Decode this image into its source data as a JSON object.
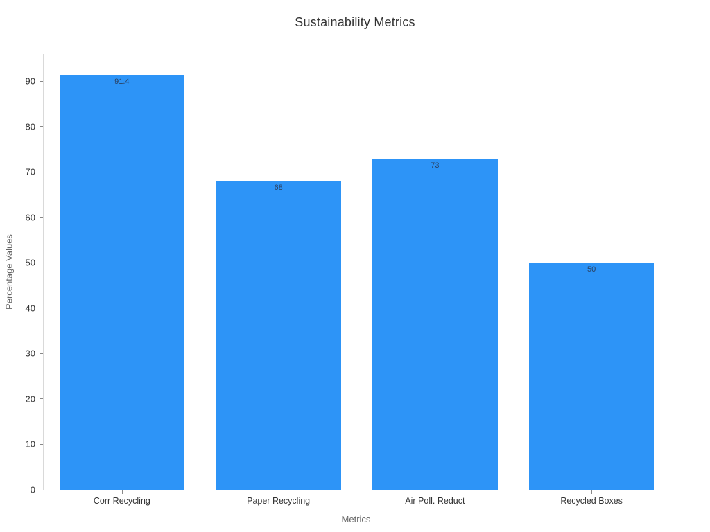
{
  "chart_data": {
    "type": "bar",
    "title": "Sustainability Metrics",
    "xlabel": "Metrics",
    "ylabel": "Percentage Values",
    "categories": [
      "Corr Recycling",
      "Paper Recycling",
      "Air Poll. Reduct",
      "Recycled Boxes"
    ],
    "values": [
      91.4,
      68,
      73,
      50
    ],
    "value_labels": [
      "91.4",
      "68",
      "73",
      "50"
    ],
    "ylim": [
      0,
      96
    ],
    "yticks": [
      0,
      10,
      20,
      30,
      40,
      50,
      60,
      70,
      80,
      90
    ],
    "grid": false,
    "legend": "none",
    "colors": {
      "bar": "#2D94F7",
      "title_text": "#333333",
      "tick_text": "#333333",
      "axis_title_text": "#666666",
      "value_label_text": "#2a3f5f",
      "axis_line": "#d9d9d9",
      "tick_mark": "#888888",
      "background": "#ffffff"
    }
  }
}
